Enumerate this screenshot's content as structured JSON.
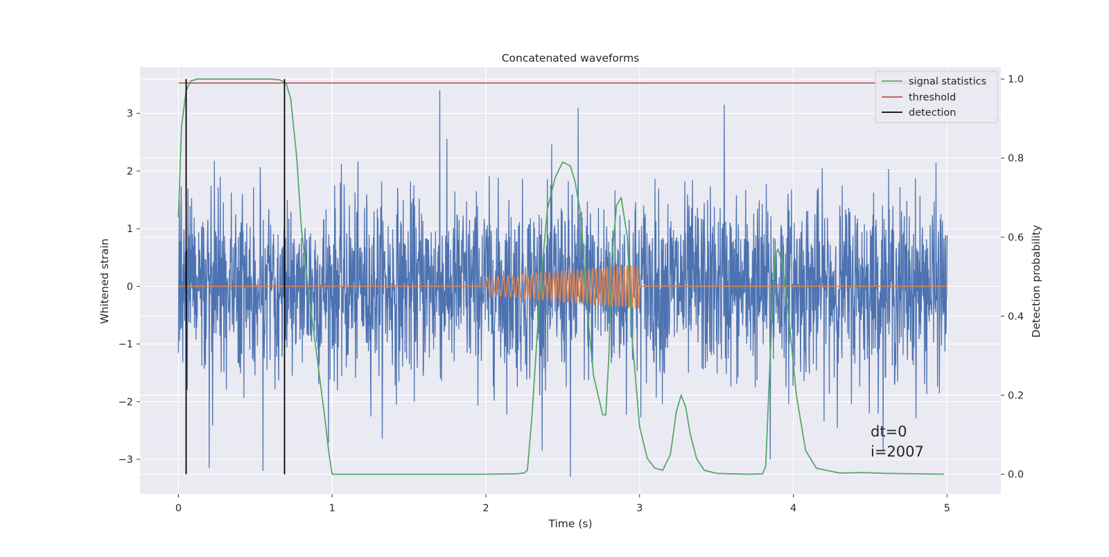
{
  "chart_data": {
    "type": "line",
    "title": "Concatenated waveforms",
    "xlabel": "Time (s)",
    "ylabel": "Whitened strain",
    "y2label": "Detection probability",
    "xlim": [
      -0.25,
      5.35
    ],
    "ylim": [
      -3.6,
      3.8
    ],
    "y2lim": [
      -0.05,
      1.03
    ],
    "xticks": [
      0,
      1,
      2,
      3,
      4,
      5
    ],
    "xtick_labels": [
      "0",
      "1",
      "2",
      "3",
      "4",
      "5"
    ],
    "yticks": [
      -3,
      -2,
      -1,
      0,
      1,
      2,
      3
    ],
    "ytick_labels": [
      "−3",
      "−2",
      "−1",
      "0",
      "1",
      "2",
      "3"
    ],
    "y2ticks": [
      0.0,
      0.2,
      0.4,
      0.6,
      0.8,
      1.0
    ],
    "y2tick_labels": [
      "0.0",
      "0.2",
      "0.4",
      "0.6",
      "0.8",
      "1.0"
    ],
    "grid": true,
    "background": "#eaeaf2",
    "legend_position": "top-right",
    "legend": [
      {
        "label": "signal statistics",
        "color": "#55a868"
      },
      {
        "label": "threshold",
        "color": "#c44e52"
      },
      {
        "label": "detection",
        "color": "#000000"
      }
    ],
    "annotations": [
      "dt=0",
      "i=2007"
    ],
    "series": [
      {
        "role": "noise",
        "axis": "left",
        "color": "#4c72b0",
        "t_range": [
          0,
          5
        ],
        "typical_range": [
          -1.5,
          1.5
        ],
        "peaks": [
          {
            "t": 1.7,
            "value": 3.4
          },
          {
            "t": 2.55,
            "value": -3.3
          },
          {
            "t": 0.55,
            "value": -3.2
          },
          {
            "t": 0.2,
            "value": -3.15
          },
          {
            "t": 3.55,
            "value": 3.15
          },
          {
            "t": 2.6,
            "value": 3.1
          },
          {
            "t": 3.85,
            "value": -3.0
          }
        ]
      },
      {
        "role": "injected-signal",
        "axis": "left",
        "color": "#dd8452",
        "t_range": [
          0,
          5
        ],
        "chirp_start": 2.0,
        "chirp_end": 3.0,
        "amp_start": 0.15,
        "amp_end": 0.38,
        "freq_start": 28,
        "freq_end": 48
      },
      {
        "name": "signal statistics",
        "axis": "right",
        "color": "#55a868",
        "t": [
          0,
          0.02,
          0.05,
          0.08,
          0.12,
          0.2,
          0.4,
          0.6,
          0.66,
          0.7,
          0.73,
          0.77,
          0.8,
          0.85,
          0.9,
          0.95,
          0.98,
          1.0,
          1.5,
          2.0,
          2.2,
          2.25,
          2.27,
          2.3,
          2.35,
          2.4,
          2.45,
          2.5,
          2.55,
          2.58,
          2.62,
          2.65,
          2.7,
          2.76,
          2.78,
          2.8,
          2.82,
          2.85,
          2.88,
          2.92,
          2.95,
          3.0,
          3.05,
          3.1,
          3.15,
          3.2,
          3.24,
          3.27,
          3.3,
          3.33,
          3.37,
          3.42,
          3.5,
          3.7,
          3.8,
          3.82,
          3.85,
          3.88,
          3.9,
          3.93,
          3.97,
          4.02,
          4.08,
          4.15,
          4.3,
          4.45,
          4.6,
          4.8,
          4.98
        ],
        "values": [
          0.65,
          0.88,
          0.97,
          0.995,
          1.0,
          1.0,
          1.0,
          1.0,
          0.998,
          0.99,
          0.95,
          0.8,
          0.62,
          0.45,
          0.3,
          0.15,
          0.05,
          0.0,
          0.0,
          0.0,
          0.001,
          0.003,
          0.01,
          0.15,
          0.45,
          0.67,
          0.75,
          0.79,
          0.78,
          0.74,
          0.65,
          0.45,
          0.25,
          0.15,
          0.15,
          0.3,
          0.55,
          0.68,
          0.7,
          0.6,
          0.35,
          0.12,
          0.04,
          0.015,
          0.01,
          0.05,
          0.16,
          0.2,
          0.17,
          0.1,
          0.04,
          0.01,
          0.002,
          0.0,
          0.001,
          0.02,
          0.3,
          0.55,
          0.57,
          0.53,
          0.4,
          0.2,
          0.06,
          0.015,
          0.003,
          0.004,
          0.002,
          0.001,
          0.0
        ]
      },
      {
        "name": "threshold",
        "axis": "right",
        "color": "#c44e52",
        "t": [
          0,
          5
        ],
        "values": [
          0.99,
          0.99
        ]
      },
      {
        "name": "detection",
        "axis": "right",
        "color": "#000000",
        "t": [
          0.05,
          0.69
        ],
        "vertical_span": [
          0.0,
          1.0
        ]
      }
    ]
  }
}
